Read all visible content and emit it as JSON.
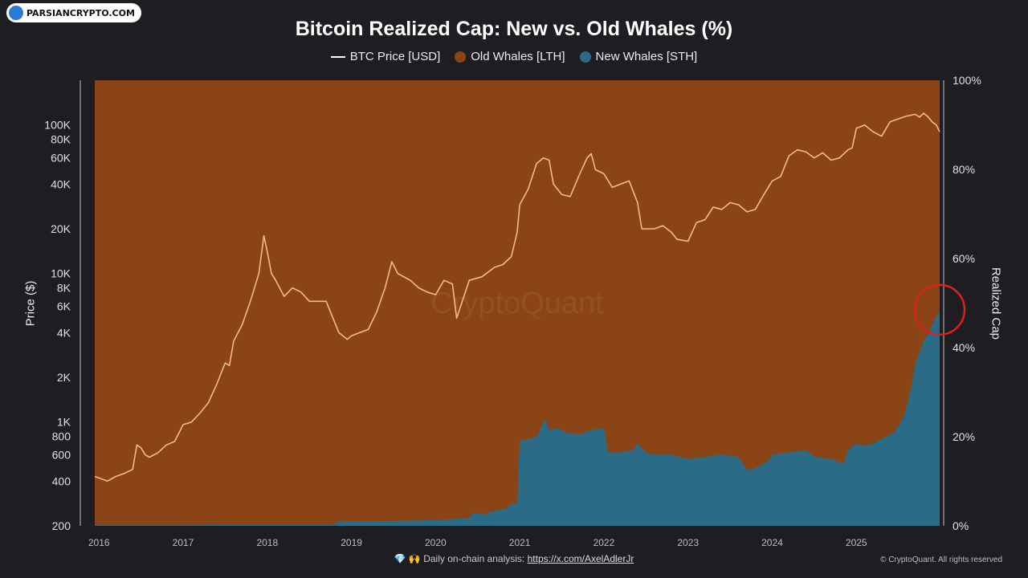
{
  "logo": {
    "text": "PARSIANCRYPTO.COM"
  },
  "footer": {
    "prefix": "💎 🙌 Daily on-chain analysis: ",
    "link": "https://x.com/AxelAdlerJr"
  },
  "copyright": "© CryptoQuant. All rights reserved",
  "watermark": "CryptoQuant",
  "colors": {
    "background": "#1e1e22",
    "old_whales": "#8a4415",
    "new_whales": "#2b6b86",
    "price": "#f4b98e",
    "highlight_circle": "#dd1f1f"
  },
  "chart_data": {
    "type": "area",
    "title": "Bitcoin Realized Cap: New vs. Old Whales (%)",
    "legend": [
      "BTC Price [USD]",
      "Old Whales [LTH]",
      "New Whales [STH]"
    ],
    "legend_position": "top-center",
    "ylabel_left": "Price ($)",
    "ylabel_right": "Realized Cap",
    "y_left_scale": "log",
    "y_left_range": [
      200,
      200000
    ],
    "y_left_ticks": [
      {
        "v": 200,
        "l": "200"
      },
      {
        "v": 400,
        "l": "400"
      },
      {
        "v": 600,
        "l": "600"
      },
      {
        "v": 800,
        "l": "800"
      },
      {
        "v": 1000,
        "l": "1K"
      },
      {
        "v": 2000,
        "l": "2K"
      },
      {
        "v": 4000,
        "l": "4K"
      },
      {
        "v": 6000,
        "l": "6K"
      },
      {
        "v": 8000,
        "l": "8K"
      },
      {
        "v": 10000,
        "l": "10K"
      },
      {
        "v": 20000,
        "l": "20K"
      },
      {
        "v": 40000,
        "l": "40K"
      },
      {
        "v": 60000,
        "l": "60K"
      },
      {
        "v": 80000,
        "l": "80K"
      },
      {
        "v": 100000,
        "l": "100K"
      }
    ],
    "y_right_range": [
      0,
      100
    ],
    "y_right_ticks": [
      "0%",
      "20%",
      "40%",
      "60%",
      "80%",
      "100%"
    ],
    "x_range": [
      2015.95,
      2025.99
    ],
    "x_ticks": [
      "2016",
      "2017",
      "2018",
      "2019",
      "2020",
      "2021",
      "2022",
      "2023",
      "2024",
      "2025"
    ],
    "grid": false,
    "series": [
      {
        "name": "Old Whales [LTH]",
        "kind": "area_remainder"
      },
      {
        "name": "New Whales [STH]",
        "kind": "area",
        "unit": "%",
        "x": [
          2015.95,
          2016.5,
          2017.0,
          2017.5,
          2018.0,
          2018.5,
          2018.8,
          2018.83,
          2019.5,
          2020.0,
          2020.4,
          2020.45,
          2020.6,
          2020.62,
          2020.85,
          2020.9,
          2020.97,
          2021.0,
          2021.1,
          2021.2,
          2021.3,
          2021.35,
          2021.45,
          2021.55,
          2021.7,
          2021.85,
          2022.0,
          2022.05,
          2022.2,
          2022.35,
          2022.4,
          2022.5,
          2022.6,
          2022.8,
          2023.0,
          2023.2,
          2023.4,
          2023.6,
          2023.7,
          2023.8,
          2023.95,
          2024.0,
          2024.2,
          2024.4,
          2024.5,
          2024.7,
          2024.85,
          2024.9,
          2025.0,
          2025.1,
          2025.2,
          2025.3,
          2025.45,
          2025.55,
          2025.6,
          2025.65,
          2025.7,
          2025.8,
          2025.85,
          2025.9,
          2025.95,
          2025.99
        ],
        "y": [
          0.1,
          0.1,
          0.1,
          0.2,
          0.2,
          0.2,
          0.2,
          1.0,
          1.1,
          1.3,
          1.8,
          3.0,
          2.5,
          3.0,
          4.0,
          5.0,
          4.8,
          19.0,
          19.5,
          20.0,
          24.0,
          21.5,
          22.0,
          21.0,
          20.5,
          21.5,
          22.0,
          16.5,
          16.5,
          17.0,
          18.5,
          16.5,
          16.0,
          16.0,
          15.0,
          15.5,
          16.0,
          15.5,
          12.5,
          13.0,
          14.5,
          16.0,
          16.5,
          17.0,
          15.5,
          15.0,
          14.0,
          17.0,
          18.5,
          18.0,
          18.5,
          19.5,
          21.0,
          24.0,
          27.0,
          31.0,
          36.5,
          41.5,
          43.0,
          45.0,
          47.0,
          48.5
        ]
      },
      {
        "name": "BTC Price [USD]",
        "kind": "line",
        "x": [
          2015.95,
          2016.0,
          2016.1,
          2016.2,
          2016.3,
          2016.4,
          2016.45,
          2016.5,
          2016.55,
          2016.6,
          2016.7,
          2016.8,
          2016.9,
          2017.0,
          2017.1,
          2017.2,
          2017.3,
          2017.4,
          2017.5,
          2017.55,
          2017.6,
          2017.7,
          2017.8,
          2017.9,
          2017.96,
          2018.0,
          2018.05,
          2018.1,
          2018.2,
          2018.3,
          2018.4,
          2018.5,
          2018.6,
          2018.7,
          2018.85,
          2018.95,
          2019.0,
          2019.1,
          2019.2,
          2019.3,
          2019.4,
          2019.48,
          2019.55,
          2019.7,
          2019.8,
          2019.9,
          2020.0,
          2020.1,
          2020.2,
          2020.25,
          2020.4,
          2020.55,
          2020.7,
          2020.8,
          2020.9,
          2020.97,
          2021.0,
          2021.1,
          2021.2,
          2021.28,
          2021.35,
          2021.4,
          2021.5,
          2021.6,
          2021.7,
          2021.8,
          2021.85,
          2021.9,
          2022.0,
          2022.1,
          2022.2,
          2022.3,
          2022.4,
          2022.45,
          2022.5,
          2022.6,
          2022.7,
          2022.8,
          2022.87,
          2023.0,
          2023.1,
          2023.2,
          2023.3,
          2023.4,
          2023.5,
          2023.6,
          2023.7,
          2023.8,
          2023.9,
          2024.0,
          2024.1,
          2024.2,
          2024.3,
          2024.4,
          2024.5,
          2024.6,
          2024.7,
          2024.8,
          2024.9,
          2024.95,
          2025.0,
          2025.1,
          2025.2,
          2025.3,
          2025.4,
          2025.5,
          2025.6,
          2025.7,
          2025.75,
          2025.8,
          2025.85,
          2025.9,
          2025.95,
          2025.99
        ],
        "y": [
          430,
          420,
          400,
          430,
          450,
          480,
          700,
          670,
          600,
          580,
          620,
          700,
          740,
          960,
          1000,
          1150,
          1350,
          1800,
          2500,
          2400,
          3500,
          4500,
          6500,
          10000,
          18000,
          14000,
          10000,
          9000,
          7000,
          8000,
          7500,
          6500,
          6500,
          6500,
          4000,
          3600,
          3800,
          4000,
          4200,
          5500,
          8000,
          12000,
          10000,
          9000,
          8000,
          7500,
          7200,
          9000,
          8500,
          5000,
          9000,
          9500,
          11000,
          11500,
          13000,
          19000,
          29000,
          37000,
          55000,
          60000,
          58000,
          40000,
          34000,
          33000,
          45000,
          60000,
          64000,
          50000,
          47000,
          38000,
          40000,
          42000,
          30000,
          20000,
          20000,
          20000,
          21000,
          19000,
          17000,
          16500,
          22000,
          23000,
          28000,
          27000,
          30000,
          29000,
          26000,
          27000,
          34000,
          42000,
          45000,
          62000,
          68000,
          66000,
          60000,
          65000,
          58000,
          60000,
          68000,
          70000,
          95000,
          100000,
          90000,
          84000,
          105000,
          110000,
          115000,
          118000,
          113000,
          120000,
          114000,
          105000,
          100000,
          90000
        ]
      }
    ],
    "annotations": [
      "red circle highlighting latest New Whales share (~48%)"
    ]
  }
}
